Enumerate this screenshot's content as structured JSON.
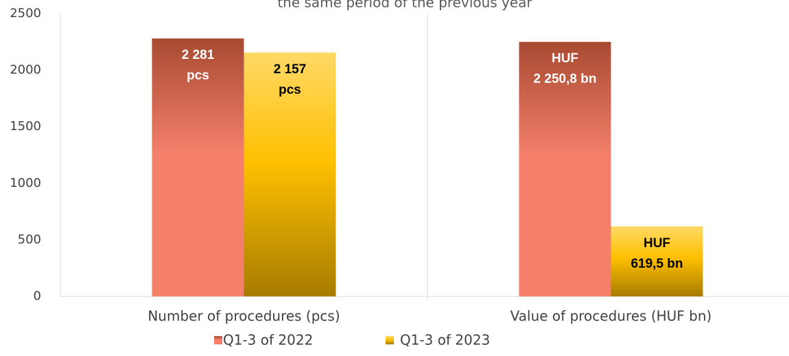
{
  "chart_data": {
    "type": "bar",
    "title": "the same period of the previous year",
    "categories": [
      "Number of procedures (pcs)",
      "Value of procedures (HUF bn)"
    ],
    "series": [
      {
        "name": "Q1-3 of 2022",
        "color": "#f4806a",
        "values": [
          2281,
          2250.8
        ],
        "value_labels": [
          "2 281\npcs",
          "HUF\n2 250,8 bn"
        ]
      },
      {
        "name": "Q1-3 of 2023",
        "color": "#ffc000",
        "values": [
          2157,
          619.5
        ],
        "value_labels": [
          "2 157\npcs",
          "HUF\n619,5 bn"
        ]
      }
    ],
    "ylim": [
      0,
      2500
    ],
    "yticks": [
      0,
      500,
      1000,
      1500,
      2000,
      2500
    ],
    "grid": false
  }
}
